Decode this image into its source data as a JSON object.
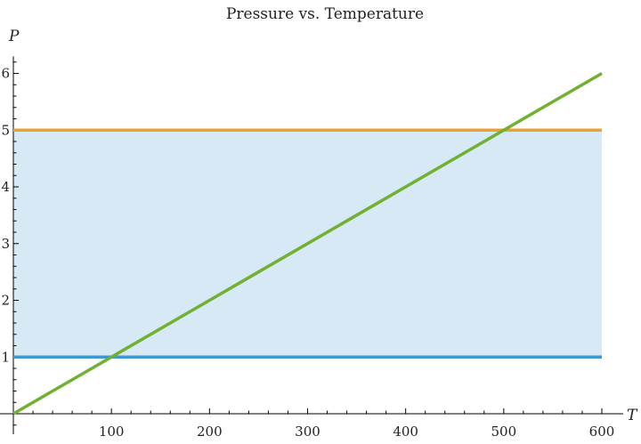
{
  "chart_data": {
    "type": "line",
    "title": "Pressure vs. Temperature",
    "xlabel": "T",
    "ylabel": "P",
    "xlim": [
      0,
      600
    ],
    "ylim": [
      0,
      6.3
    ],
    "x_ticks": [
      100,
      200,
      300,
      400,
      500,
      600
    ],
    "y_ticks": [
      1,
      2,
      3,
      4,
      5,
      6
    ],
    "x_minor_step": 20,
    "y_minor_step": 0.2,
    "grid": false,
    "fill_between": {
      "lower": 1,
      "upper": 5,
      "x": [
        0,
        600
      ],
      "color": "#d6e9f4"
    },
    "series": [
      {
        "x": [
          0,
          600
        ],
        "y": [
          1,
          1
        ],
        "color": "#3d98d3"
      },
      {
        "x": [
          0,
          600
        ],
        "y": [
          5,
          5
        ],
        "color": "#eda02d"
      },
      {
        "x": [
          0,
          600
        ],
        "y": [
          0,
          6
        ],
        "color": "#72b032"
      }
    ]
  }
}
